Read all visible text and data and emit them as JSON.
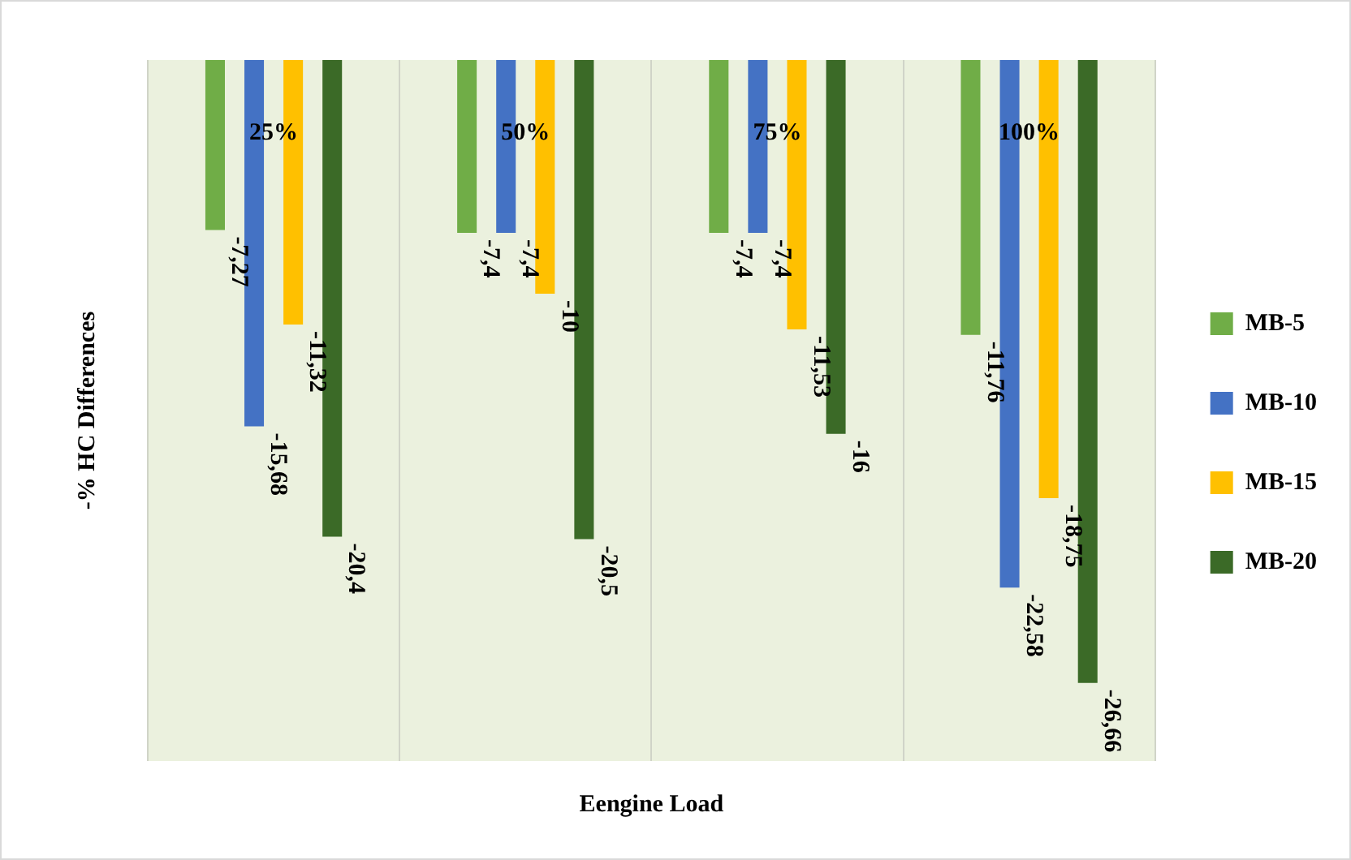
{
  "chart_data": {
    "type": "bar",
    "xlabel": "Eengine Load",
    "ylabel": "-% HC Differences",
    "categories": [
      "25%",
      "50%",
      "75%",
      "100%"
    ],
    "series": [
      {
        "name": "MB-5",
        "color": "#70ad47",
        "values": [
          -7.27,
          -7.4,
          -7.4,
          -11.76
        ],
        "value_labels": [
          "-7,27",
          "-7,4",
          "-7,4",
          "-11,76"
        ]
      },
      {
        "name": "MB-10",
        "color": "#4472c4",
        "values": [
          -15.68,
          -7.4,
          -7.4,
          -22.58
        ],
        "value_labels": [
          "-15,68",
          "-7,4",
          "-7,4",
          "-22,58"
        ]
      },
      {
        "name": "MB-15",
        "color": "#ffc000",
        "values": [
          -11.32,
          -10,
          -11.53,
          -18.75
        ],
        "value_labels": [
          "-11,32",
          "-10",
          "-11,53",
          "-18,75"
        ]
      },
      {
        "name": "MB-20",
        "color": "#3b6a27",
        "values": [
          -20.4,
          -20.5,
          -16,
          -26.66
        ],
        "value_labels": [
          "-20,4",
          "-20,5",
          "-16",
          "-26,66"
        ]
      }
    ],
    "ylim": [
      -30,
      0
    ],
    "tick_labels": "x",
    "grid": "x",
    "legend": "right"
  }
}
